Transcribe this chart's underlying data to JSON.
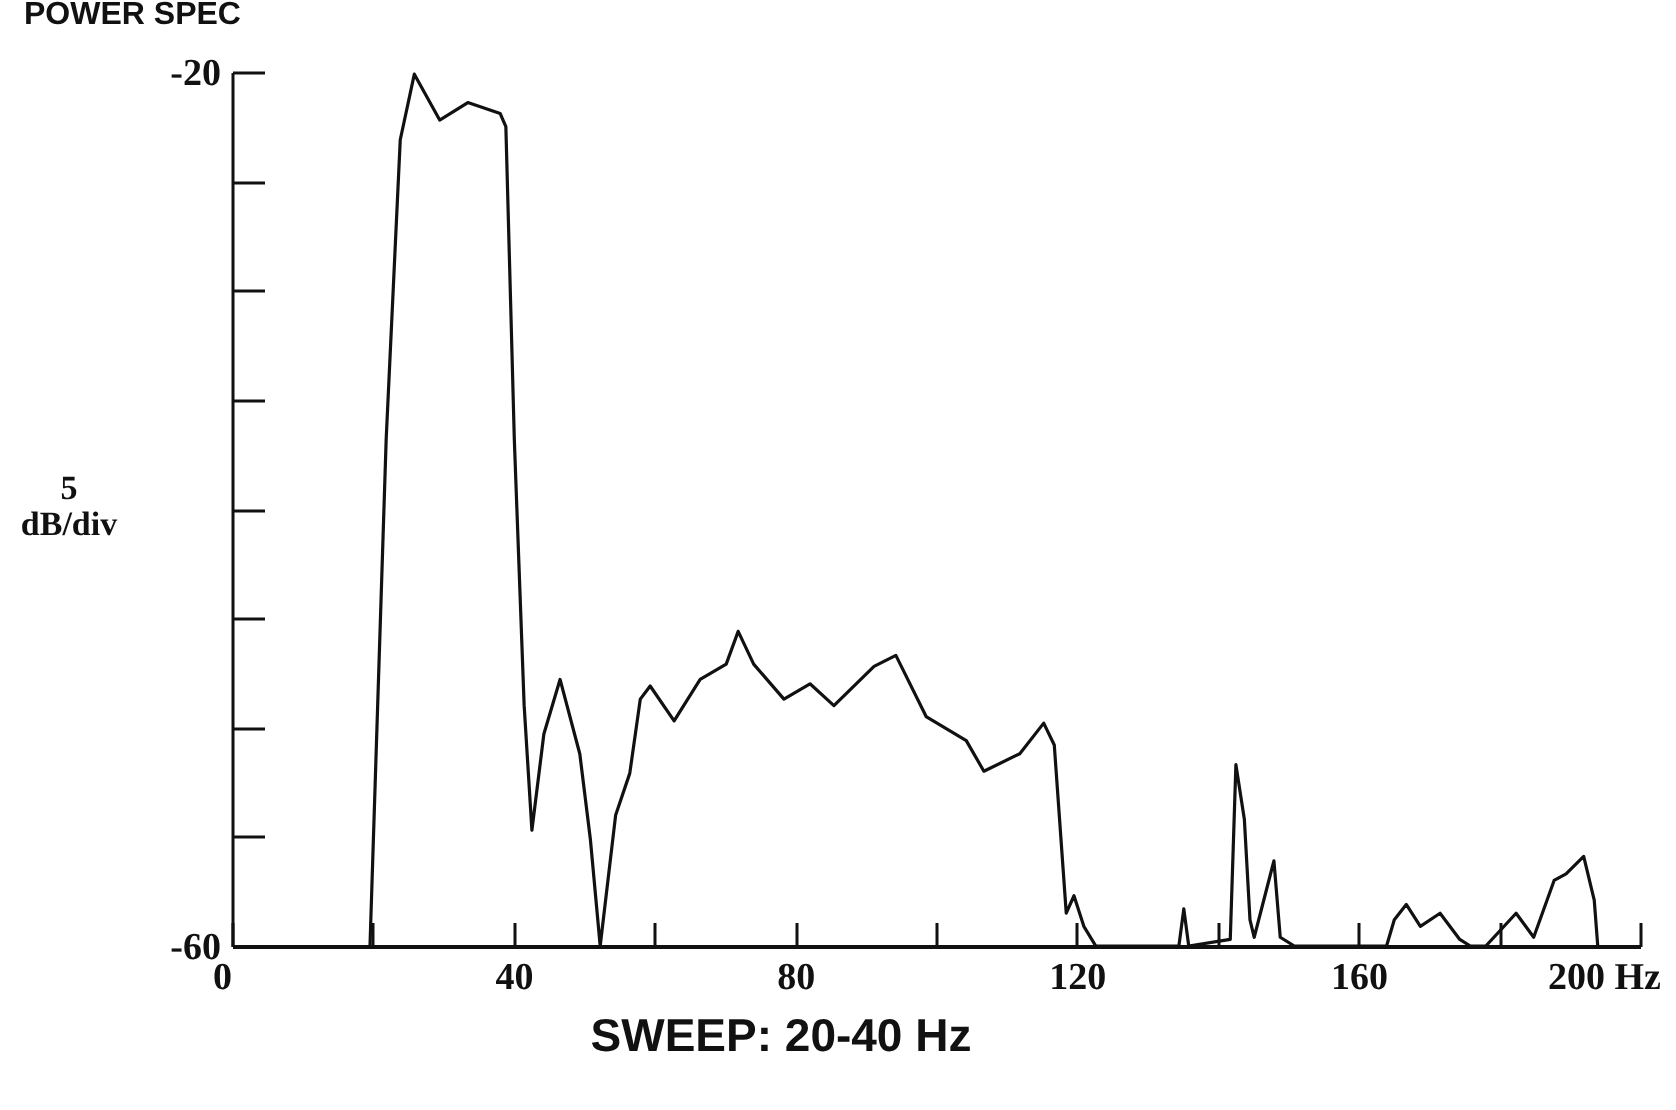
{
  "chart_data": {
    "type": "line",
    "title": "POWER SPEC",
    "xlabel": "SWEEP:  20-40  Hz",
    "ylabel": "5 dB/div",
    "xlim": [
      0,
      200
    ],
    "ylim": [
      -60,
      -20
    ],
    "xticks": [
      0,
      {
        "value": 20,
        "label": null
      },
      40,
      {
        "value": 60,
        "label": null
      },
      80,
      {
        "value": 100,
        "label": null
      },
      120,
      {
        "value": 140,
        "label": null
      },
      160,
      {
        "value": 180,
        "label": null
      },
      {
        "value": 200,
        "label": "200 Hz"
      }
    ],
    "yticks": [
      -20,
      {
        "value": -25,
        "label": null
      },
      {
        "value": -30,
        "label": null
      },
      {
        "value": -35,
        "label": null
      },
      {
        "value": -40,
        "label": null
      },
      {
        "value": -45,
        "label": null
      },
      {
        "value": -50,
        "label": null
      },
      {
        "value": -55,
        "label": null
      },
      -60
    ],
    "grid": false,
    "series": [
      {
        "color": "#111111",
        "x": [
          19.6,
          21.9,
          23.9,
          25.9,
          29.5,
          33.5,
          38.1,
          38.9,
          40.1,
          41.5,
          42.6,
          44.3,
          46.6,
          49.4,
          50.9,
          52.3,
          54.5,
          56.5,
          58.0,
          59.4,
          62.8,
          66.5,
          70.2,
          71.9,
          74.1,
          78.4,
          82.1,
          85.5,
          91.2,
          94.3,
          98.6,
          104.3,
          106.8,
          111.9,
          115.3,
          116.8,
          118.5,
          119.6,
          121.0,
          122.7,
          134.5,
          135.2,
          135.9,
          141.8,
          142.6,
          143.8,
          144.6,
          145.2,
          148.0,
          148.9,
          150.9,
          164.0,
          165.1,
          166.8,
          168.8,
          171.6,
          174.4,
          175.9,
          178.1,
          182.4,
          184.9,
          187.8,
          189.5,
          192.0,
          193.5,
          194.0
        ],
        "values": [
          -60,
          -36.8,
          -23.1,
          -20.1,
          -22.2,
          -21.4,
          -21.9,
          -22.5,
          -36.8,
          -49,
          -54.7,
          -50.3,
          -47.8,
          -51.2,
          -55.1,
          -60,
          -54,
          -52.1,
          -48.7,
          -48.1,
          -49.7,
          -47.8,
          -47.1,
          -45.6,
          -47.1,
          -48.7,
          -48.0,
          -49.0,
          -47.2,
          -46.7,
          -49.5,
          -50.6,
          -52.0,
          -51.2,
          -49.8,
          -50.8,
          -58.5,
          -57.7,
          -59.1,
          -60,
          -60,
          -58.3,
          -60,
          -59.7,
          -51.7,
          -54.2,
          -58.8,
          -59.6,
          -56.1,
          -59.6,
          -60,
          -60,
          -58.8,
          -58.1,
          -59.1,
          -58.5,
          -59.7,
          -60,
          -60,
          -58.5,
          -59.6,
          -57.0,
          -56.7,
          -55.9,
          -57.9,
          -60
        ]
      }
    ]
  }
}
